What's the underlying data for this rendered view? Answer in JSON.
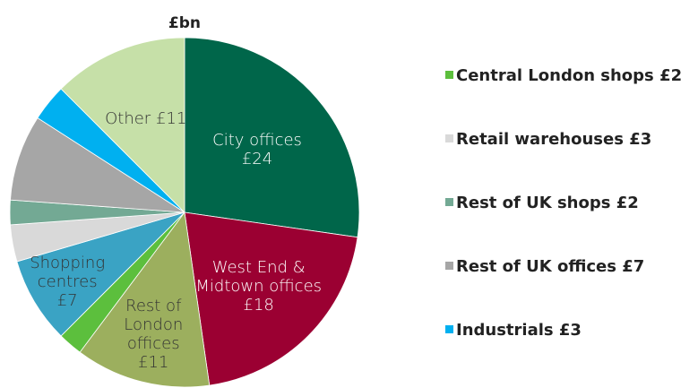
{
  "chart_data": {
    "type": "pie",
    "title": "£bn",
    "categories": [
      "City offices",
      "West End & Midtown offices",
      "Rest of London offices",
      "Central London shops",
      "Shopping centres",
      "Retail warehouses",
      "Rest of UK shops",
      "Rest of UK offices",
      "Industrials",
      "Other"
    ],
    "values": [
      24,
      18,
      11,
      2,
      7,
      3,
      2,
      7,
      3,
      11
    ],
    "value_labels": [
      "£24",
      "£18",
      "£11",
      "£2",
      "£7",
      "£3",
      "£2",
      "£7",
      "£3",
      "£11"
    ],
    "colors": [
      "#00664a",
      "#9b0032",
      "#9caf5e",
      "#5cbf3d",
      "#3aa3c4",
      "#d9d9d9",
      "#73a994",
      "#a6a6a6",
      "#00b0f0",
      "#c6e0a8"
    ],
    "label_style": [
      "inside",
      "inside",
      "inside",
      "legend",
      "inside",
      "legend",
      "legend",
      "legend",
      "legend",
      "inside"
    ]
  }
}
